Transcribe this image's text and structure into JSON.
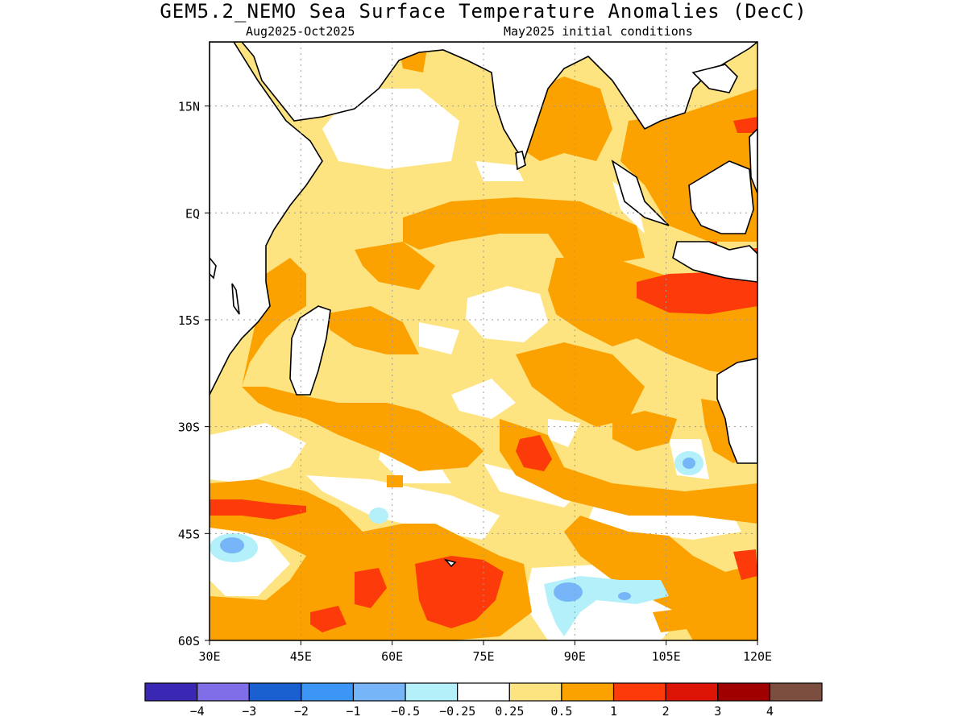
{
  "title": "GEM5.2_NEMO Sea Surface Temperature Anomalies (DecC)",
  "subtitle_left": "Aug2025-Oct2025",
  "subtitle_right": "May2025 initial conditions",
  "map": {
    "lon_range": [
      30,
      120
    ],
    "lat_range": [
      -60,
      24
    ],
    "lon_ticks": [
      "30E",
      "45E",
      "60E",
      "75E",
      "90E",
      "105E",
      "120E"
    ],
    "lat_ticks": [
      "15N",
      "EQ",
      "15S",
      "30S",
      "45S",
      "60S"
    ],
    "grid": true
  },
  "colorbar": {
    "colors": [
      "#3a28b4",
      "#7f6ee8",
      "#1a5fd0",
      "#3c96f5",
      "#76b6f8",
      "#b4f0fa",
      "#ffffff",
      "#fee480",
      "#fca200",
      "#fc3a0a",
      "#dc1405",
      "#a00000",
      "#7b4e3f"
    ],
    "labels": [
      "-4",
      "-3",
      "-2",
      "-1",
      "-0.5",
      "-0.25",
      "0.25",
      "0.5",
      "1",
      "2",
      "3",
      "4"
    ]
  }
}
